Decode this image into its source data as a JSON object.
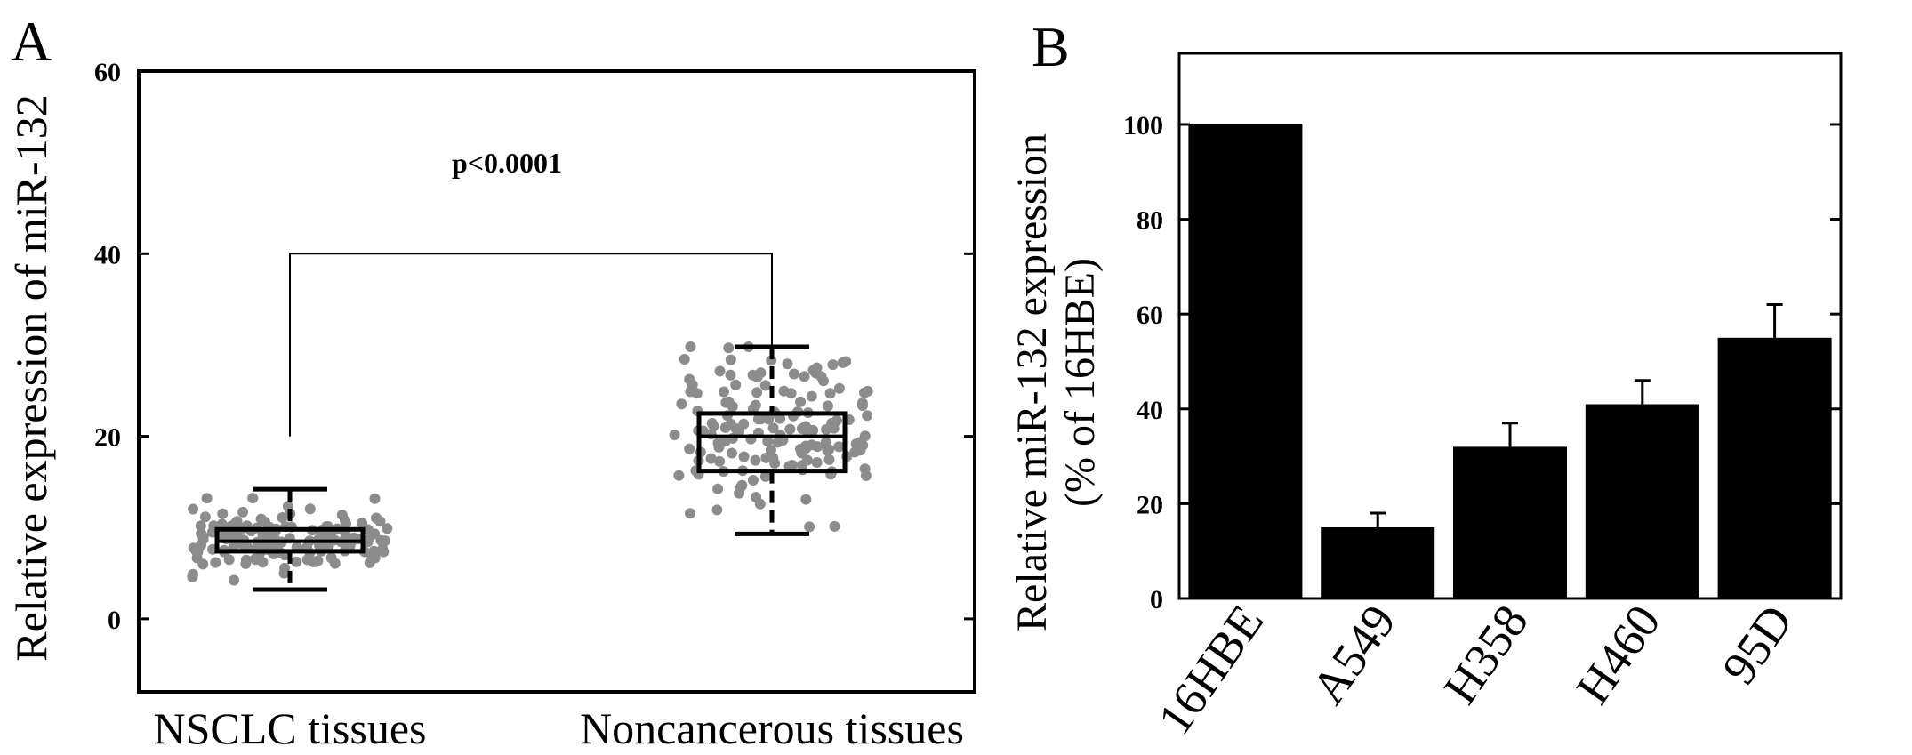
{
  "panel_a": {
    "letter": "A",
    "ylabel": "Relative expression of miR-132",
    "annotation": "p<0.0001",
    "chart_data": {
      "type": "box",
      "categories": [
        "NSCLC tissues",
        "Noncancerous tissues"
      ],
      "ylim": [
        -8,
        60
      ],
      "yticks": [
        0,
        20,
        40,
        60
      ],
      "groups": [
        {
          "label": "NSCLC tissues",
          "whisker_low": 3.2,
          "q1": 7.4,
          "median": 8.5,
          "q3": 9.8,
          "whisker_high": 14.2,
          "n_points": 150,
          "spread": [
            3.2,
            14.2
          ]
        },
        {
          "label": "Noncancerous tissues",
          "whisker_low": 9.3,
          "q1": 16.2,
          "median": 20.0,
          "q3": 22.5,
          "whisker_high": 29.8,
          "n_points": 150,
          "spread": [
            9.3,
            29.8
          ]
        }
      ],
      "significance_bracket": {
        "y": 40,
        "left_bottom": 20,
        "right_bottom": 29.8
      },
      "colors": {
        "points": "#8c8c8c",
        "box": "#000000"
      }
    }
  },
  "panel_b": {
    "letter": "B",
    "ylabel_line1": "Relative miR-132 expression",
    "ylabel_line2": "(% of 16HBE)",
    "chart_data": {
      "type": "bar",
      "categories": [
        "16HBE",
        "A549",
        "H358",
        "H460",
        "95D"
      ],
      "values": [
        100,
        15,
        32,
        41,
        55
      ],
      "errors": [
        0,
        3,
        5,
        5,
        7
      ],
      "ylim": [
        0,
        115
      ],
      "yticks": [
        0,
        20,
        40,
        60,
        80,
        100
      ],
      "colors": {
        "bar": "#000000"
      }
    }
  }
}
